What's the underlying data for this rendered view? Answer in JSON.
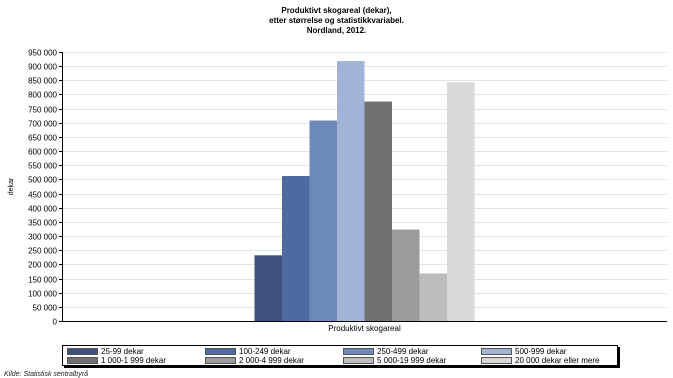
{
  "chart_data": {
    "type": "bar",
    "title": [
      "Produktivt skogareal (dekar),",
      "etter størrelse og statistikkvariabel.",
      "Nordland, 2012."
    ],
    "ylabel": "dekar",
    "categories": [
      "Produktivt skogareal"
    ],
    "ylim": [
      0,
      950000
    ],
    "yticks": [
      0,
      50000,
      100000,
      150000,
      200000,
      250000,
      300000,
      350000,
      400000,
      450000,
      500000,
      550000,
      600000,
      650000,
      700000,
      750000,
      800000,
      850000,
      900000,
      950000
    ],
    "ytick_labels": [
      "0",
      "50 000",
      "100 000",
      "150 000",
      "200 000",
      "250 000",
      "300 000",
      "350 000",
      "400 000",
      "450 000",
      "500 000",
      "550 000",
      "600 000",
      "650 000",
      "700 000",
      "750 000",
      "800 000",
      "850 000",
      "900 000",
      "950 000"
    ],
    "grid": true,
    "legend_position": "bottom",
    "series": [
      {
        "name": "25-99 dekar",
        "values": [
          232000
        ],
        "color": "#3d5080"
      },
      {
        "name": "100-249 dekar",
        "values": [
          512000
        ],
        "color": "#4d6aa3"
      },
      {
        "name": "250-499 dekar",
        "values": [
          708000
        ],
        "color": "#6d89ba"
      },
      {
        "name": "500-999 dekar",
        "values": [
          918000
        ],
        "color": "#a3b3d8"
      },
      {
        "name": "1 000-1 999 dekar",
        "values": [
          775000
        ],
        "color": "#707070"
      },
      {
        "name": "2 000-4 999 dekar",
        "values": [
          323000
        ],
        "color": "#9b9b9b"
      },
      {
        "name": "5 000-19 999 dekar",
        "values": [
          168000
        ],
        "color": "#bdbdbd"
      },
      {
        "name": "20 000 dekar eller mere",
        "values": [
          843000
        ],
        "color": "#d9d9d9"
      }
    ]
  },
  "source": "Kilde: Statistisk sentralbyrå"
}
